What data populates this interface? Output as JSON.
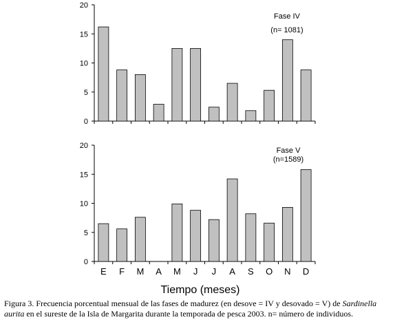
{
  "chart_data": [
    {
      "type": "bar",
      "title": "Fase IV",
      "subtitle": "(n= 1081)",
      "categories": [
        "E",
        "F",
        "M",
        "A",
        "M",
        "J",
        "J",
        "A",
        "S",
        "O",
        "N",
        "D"
      ],
      "values": [
        16.2,
        8.8,
        8.0,
        2.9,
        12.5,
        12.5,
        2.4,
        6.5,
        1.8,
        5.3,
        14.0,
        8.8
      ],
      "ylim": [
        0,
        20
      ],
      "yticks": [
        "0",
        "5",
        "10",
        "15",
        "20"
      ],
      "bar_color": "#c0c0c0",
      "grid": false
    },
    {
      "type": "bar",
      "title": "Fase V",
      "subtitle": "(n=1589)",
      "categories": [
        "E",
        "F",
        "M",
        "A",
        "M",
        "J",
        "J",
        "A",
        "S",
        "O",
        "N",
        "D"
      ],
      "values": [
        6.5,
        5.6,
        7.6,
        0,
        9.9,
        8.8,
        7.2,
        14.2,
        8.2,
        6.6,
        9.3,
        15.8
      ],
      "ylim": [
        0,
        20
      ],
      "yticks": [
        "0",
        "5",
        "10",
        "15",
        "20"
      ],
      "bar_color": "#c0c0c0",
      "grid": false,
      "xticks_visible": true
    }
  ],
  "xlabel": "Tiempo (meses)",
  "caption": {
    "part1": "Figura 3. Frecuencia porcentual mensual de las fases de madurez (en desove = IV y desovado = V) de ",
    "italic": "Sardinella aurita",
    "part2": " en el sureste de la Isla de Margarita durante la temporada de pesca 2003. n= número de individuos."
  }
}
